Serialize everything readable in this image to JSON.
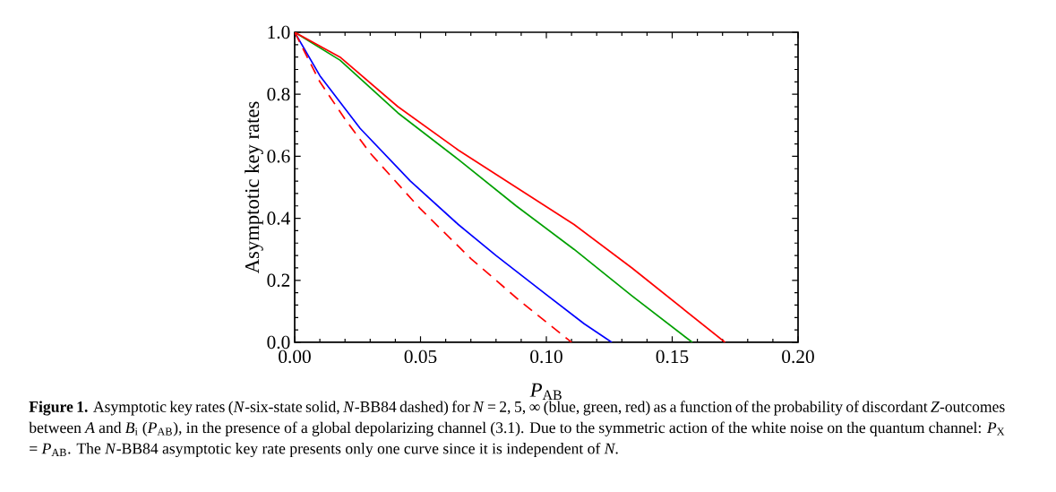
{
  "chart_data": {
    "type": "line",
    "xlabel": "*P*$_{AB}$",
    "ylabel": "Asymptotic key rates",
    "xlim": [
      0,
      0.2
    ],
    "ylim": [
      0,
      1
    ],
    "xticks": [
      {
        "value": 0,
        "label": "0.00"
      },
      0.05,
      {
        "value": 0.1,
        "label": "0.10"
      },
      0.15,
      {
        "value": 0.2,
        "label": "0.20"
      }
    ],
    "yticks": [
      {
        "value": 0,
        "label": "0.0"
      },
      0.2,
      0.4,
      0.6,
      0.8,
      {
        "value": 1,
        "label": "1.0"
      }
    ],
    "grid": false,
    "legend": false,
    "marker": "none",
    "series": [
      {
        "color": "#0000ff",
        "line_style": "solid",
        "x": [
          0,
          0.01,
          0.026,
          0.046,
          0.065,
          0.08,
          0.099,
          0.115,
          0.126
        ],
        "values": [
          1,
          0.86,
          0.69,
          0.52,
          0.38,
          0.28,
          0.16,
          0.06,
          0
        ]
      },
      {
        "color": "#00a000",
        "line_style": "solid",
        "x": [
          0,
          0.018,
          0.041,
          0.065,
          0.088,
          0.111,
          0.134,
          0.158
        ],
        "values": [
          1,
          0.91,
          0.74,
          0.59,
          0.44,
          0.3,
          0.15,
          0
        ]
      },
      {
        "color": "#ff0000",
        "line_style": "solid",
        "x": [
          0,
          0.018,
          0.041,
          0.065,
          0.088,
          0.111,
          0.134,
          0.171
        ],
        "values": [
          1,
          0.92,
          0.76,
          0.62,
          0.5,
          0.38,
          0.24,
          0
        ]
      },
      {
        "color": "#ff0000",
        "line_style": "dashed",
        "x": [
          0,
          0.01,
          0.02,
          0.03,
          0.05,
          0.07,
          0.09,
          0.11
        ],
        "values": [
          1,
          0.84,
          0.72,
          0.61,
          0.43,
          0.27,
          0.13,
          0
        ]
      }
    ],
    "annotations": [
      "**Figure 1.** Asymptotic key rates (*N*-six-state solid, *N*-BB84 dashed) for *N* = 2, 5, ∞ (blue, green, red) as a function of the probability of discordant *Z*-outcomes between *A* and *B*$_{i}$ (*P*$_{AB}$), in the presence of a global depolarizing channel (3.1). Due to the symmetric action of the white noise on the quantum channel: *P*$_{X}$ = *P*$_{AB}$. The *N*-BB84 asymptotic key rate presents only one curve since it is independent of *N*."
    ]
  }
}
